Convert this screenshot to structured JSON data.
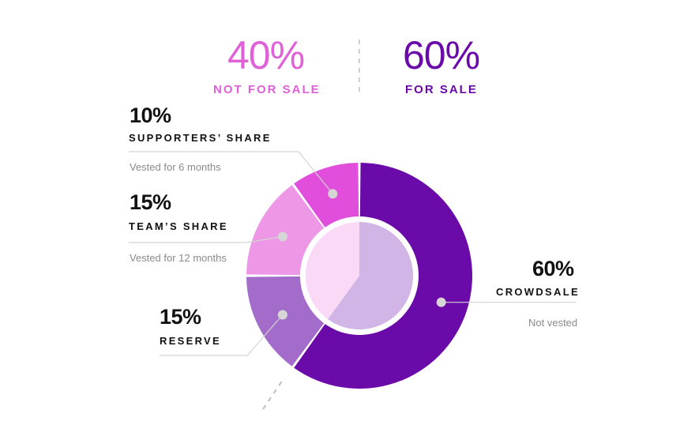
{
  "header": {
    "left": {
      "percent": "40%",
      "label": "NOT FOR SALE",
      "color": "#e060d8"
    },
    "right": {
      "percent": "60%",
      "label": "FOR SALE",
      "color": "#6a0aa8"
    }
  },
  "labels": {
    "supporters": {
      "percent": "10%",
      "name": "SUPPORTERS’ SHARE",
      "note": "Vested for 6 months"
    },
    "team": {
      "percent": "15%",
      "name": "TEAM’S SHARE",
      "note": "Vested for 12 months"
    },
    "reserve": {
      "percent": "15%",
      "name": "RESERVE"
    },
    "crowdsale": {
      "percent": "60%",
      "name": "CROWDSALE",
      "note": "Not vested"
    }
  },
  "chart_data": {
    "type": "pie",
    "subtype": "donut",
    "categories": [
      "Crowdsale",
      "Reserve",
      "Team’s share",
      "Supporters’ share"
    ],
    "values": [
      60,
      15,
      15,
      10
    ],
    "colors": [
      "#6a0aa8",
      "#a46cca",
      "#ed97e6",
      "#e04edb"
    ],
    "inner_ring": {
      "categories": [
        "For sale",
        "Not for sale"
      ],
      "values": [
        60,
        40
      ],
      "colors": [
        "#d1b5e6",
        "#f9d9f6"
      ]
    }
  }
}
